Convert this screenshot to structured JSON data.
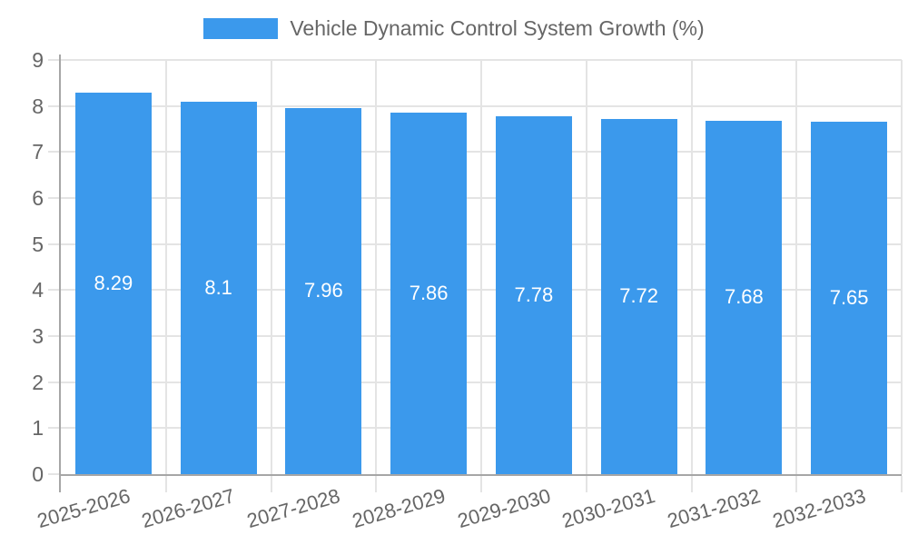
{
  "legend": {
    "items": [
      {
        "label": "Vehicle Dynamic Control System Growth (%)",
        "color": "#3B99EC"
      }
    ]
  },
  "chart_data": {
    "type": "bar",
    "title": "Vehicle Dynamic Control System Growth (%)",
    "categories": [
      "2025-2026",
      "2026-2027",
      "2027-2028",
      "2028-2029",
      "2029-2030",
      "2030-2031",
      "2031-2032",
      "2032-2033"
    ],
    "series": [
      {
        "name": "Vehicle Dynamic Control System Growth (%)",
        "values": [
          8.29,
          8.1,
          7.96,
          7.86,
          7.78,
          7.72,
          7.68,
          7.65
        ],
        "color": "#3B99EC"
      }
    ],
    "value_labels": [
      "8.29",
      "8.1",
      "7.96",
      "7.86",
      "7.78",
      "7.72",
      "7.68",
      "7.65"
    ],
    "xlabel": "",
    "ylabel": "",
    "ylim": [
      0,
      9
    ],
    "yticks": [
      0,
      1,
      2,
      3,
      4,
      5,
      6,
      7,
      8,
      9
    ],
    "grid": true,
    "legend_position": "top",
    "label_rotation_deg": -16,
    "colors": {
      "bar": "#3B99EC",
      "bar_value_text": "#FFFFFF",
      "grid": "#E4E4E4",
      "axis": "#A6A6A6",
      "tick_text": "#666666",
      "legend_text": "#666666",
      "background": "#FFFFFF"
    }
  }
}
